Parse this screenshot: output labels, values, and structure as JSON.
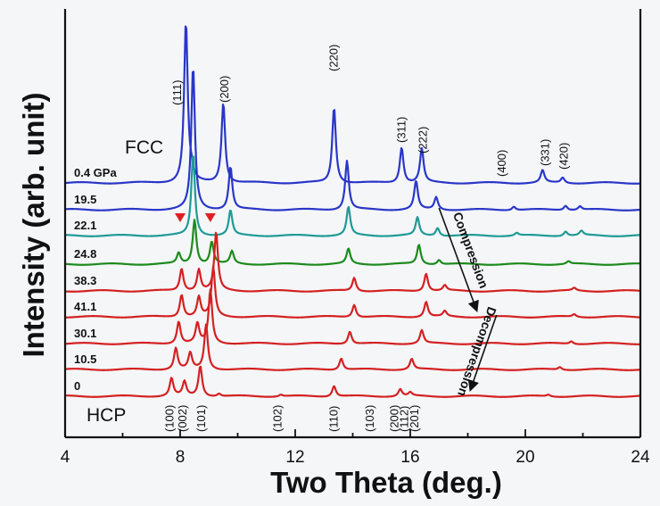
{
  "chart_data": {
    "type": "line",
    "title": "",
    "xlabel": "Two Theta (deg.)",
    "ylabel": "Intensity (arb. unit)",
    "xlim": [
      4,
      24
    ],
    "xticks": [
      "4",
      "8",
      "12",
      "16",
      "20",
      "24"
    ],
    "phase_labels": {
      "top": "FCC",
      "bottom": "HCP"
    },
    "series": [
      {
        "name": "0.4 GPa",
        "label": "0.4 GPa",
        "color": "#2a36c8",
        "peaks": [
          [
            8.2,
            180
          ],
          [
            8.4,
            8
          ],
          [
            9.5,
            90
          ],
          [
            13.35,
            85
          ],
          [
            15.7,
            40
          ],
          [
            16.4,
            38
          ],
          [
            20.6,
            14
          ],
          [
            21.3,
            6
          ]
        ]
      },
      {
        "name": "19.5",
        "label": "19.5",
        "color": "#2a36c8",
        "peaks": [
          [
            8.45,
            160
          ],
          [
            9.75,
            48
          ],
          [
            13.8,
            55
          ],
          [
            16.2,
            32
          ],
          [
            16.9,
            14
          ],
          [
            19.6,
            4
          ],
          [
            21.4,
            5
          ],
          [
            21.9,
            4
          ]
        ]
      },
      {
        "name": "22.1",
        "label": "22.1",
        "color": "#1f9a96",
        "peaks": [
          [
            8.45,
            92
          ],
          [
            9.75,
            28
          ],
          [
            13.85,
            32
          ],
          [
            16.25,
            20
          ],
          [
            16.95,
            9
          ],
          [
            19.7,
            3
          ],
          [
            21.4,
            5
          ],
          [
            21.95,
            5
          ]
        ]
      },
      {
        "name": "24.8",
        "label": "24.8",
        "color": "#1d8a1d",
        "peaks": [
          [
            7.95,
            12
          ],
          [
            8.5,
            50
          ],
          [
            9.1,
            25
          ],
          [
            9.8,
            14
          ],
          [
            13.85,
            17
          ],
          [
            16.3,
            22
          ],
          [
            17.0,
            5
          ],
          [
            21.5,
            3
          ]
        ]
      },
      {
        "name": "38.3",
        "label": "38.3",
        "color": "#d42020",
        "peaks": [
          [
            8.05,
            25
          ],
          [
            8.65,
            24
          ],
          [
            9.25,
            65
          ],
          [
            14.05,
            15
          ],
          [
            16.55,
            20
          ],
          [
            17.2,
            6
          ],
          [
            21.7,
            3
          ]
        ]
      },
      {
        "name": "41.1",
        "label": "41.1",
        "color": "#d42020",
        "peaks": [
          [
            8.05,
            25
          ],
          [
            8.65,
            22
          ],
          [
            9.15,
            55
          ],
          [
            14.05,
            14
          ],
          [
            16.55,
            17
          ],
          [
            17.2,
            6
          ],
          [
            21.7,
            3
          ]
        ]
      },
      {
        "name": "30.1",
        "label": "30.1",
        "color": "#d42020",
        "peaks": [
          [
            7.95,
            25
          ],
          [
            8.6,
            22
          ],
          [
            9.05,
            60
          ],
          [
            13.9,
            14
          ],
          [
            16.4,
            15
          ],
          [
            21.6,
            3
          ]
        ]
      },
      {
        "name": "10.5",
        "label": "10.5",
        "color": "#d42020",
        "peaks": [
          [
            7.85,
            24
          ],
          [
            8.35,
            18
          ],
          [
            8.9,
            50
          ],
          [
            13.6,
            13
          ],
          [
            16.05,
            12
          ],
          [
            21.2,
            3
          ]
        ]
      },
      {
        "name": "0",
        "label": "0",
        "color": "#d42020",
        "peaks": [
          [
            7.7,
            20
          ],
          [
            8.15,
            16
          ],
          [
            8.7,
            34
          ],
          [
            9.35,
            3
          ],
          [
            11.5,
            2
          ],
          [
            13.35,
            12
          ],
          [
            15.65,
            8
          ],
          [
            16.0,
            4
          ],
          [
            20.8,
            2
          ]
        ]
      }
    ],
    "fcc_reflections": [
      {
        "label": "(111)",
        "x": 7.9
      },
      {
        "label": "(200)",
        "x": 9.55
      },
      {
        "label": "(220)",
        "x": 13.35
      },
      {
        "label": "(311)",
        "x": 15.7
      },
      {
        "label": "(222)",
        "x": 16.45
      },
      {
        "label": "(400)",
        "x": 19.2
      },
      {
        "label": "(331)",
        "x": 20.7
      },
      {
        "label": "(420)",
        "x": 21.35
      }
    ],
    "hcp_reflections": [
      {
        "label": "(100)",
        "x": 7.65
      },
      {
        "label": "(002)",
        "x": 8.1
      },
      {
        "label": "(101)",
        "x": 8.75
      },
      {
        "label": "(102)",
        "x": 11.4
      },
      {
        "label": "(110)",
        "x": 13.35
      },
      {
        "label": "(103)",
        "x": 14.6
      },
      {
        "label": "(200)",
        "x": 15.45
      },
      {
        "label": "(112)",
        "x": 15.8
      },
      {
        "label": "(201)",
        "x": 16.15
      }
    ],
    "markers": [
      {
        "type": "triangle-down",
        "x": 8.0,
        "trace": "22.1",
        "color": "#e02020"
      },
      {
        "type": "triangle-down",
        "x": 9.05,
        "trace": "22.1",
        "color": "#e02020"
      }
    ],
    "arrows": [
      {
        "label": "Compression",
        "from": [
          17.0,
          "19.5"
        ],
        "to": [
          18.3,
          "41.1"
        ]
      },
      {
        "label": "Decompression",
        "from": [
          19.0,
          "41.1"
        ],
        "to": [
          18.1,
          "0"
        ]
      }
    ]
  }
}
